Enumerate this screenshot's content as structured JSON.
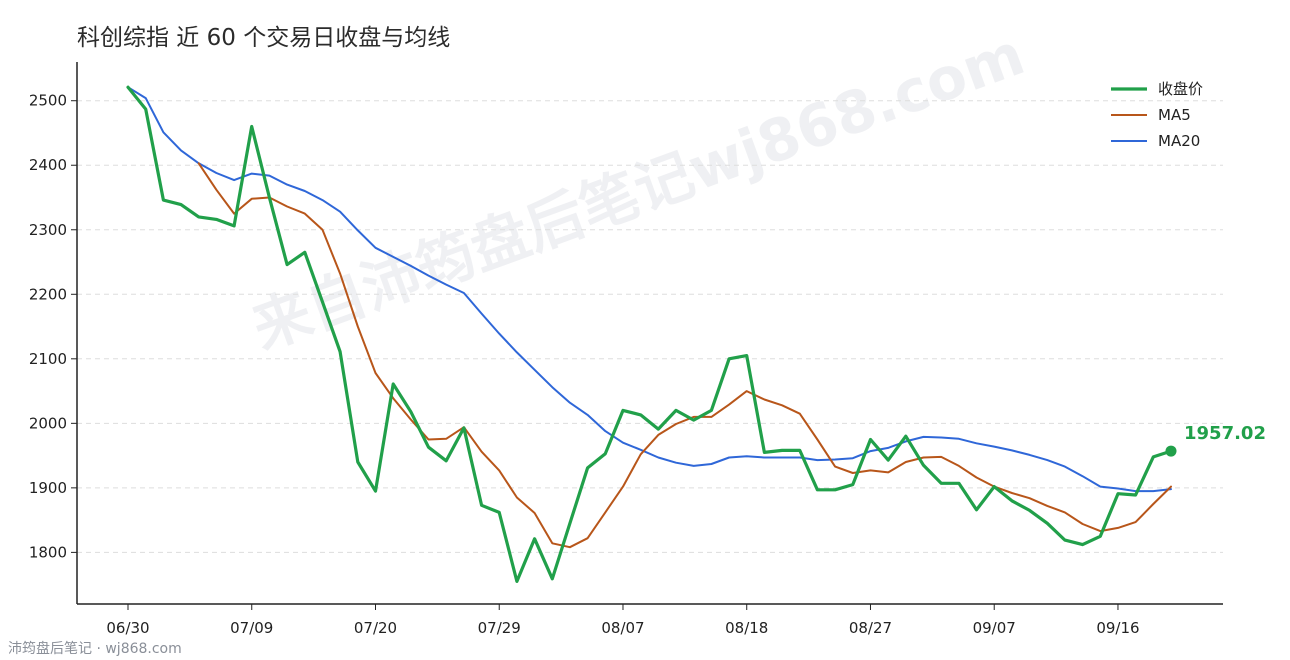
{
  "title": "科创综指 近 60 个交易日收盘与均线",
  "watermark": "来自沛筠盘后笔记wj868.com",
  "footer": "沛筠盘后笔记 · wj868.com",
  "colors": {
    "close": "#21a04a",
    "ma5": "#b8561a",
    "ma20": "#2f67d8",
    "grid": "#dddddd",
    "axis": "#222222"
  },
  "chart_data": {
    "type": "line",
    "title": "科创综指 近 60 个交易日收盘与均线",
    "xlabel": "",
    "ylabel": "",
    "ylim": [
      1720,
      2560
    ],
    "yticks": [
      1800,
      1900,
      2000,
      2100,
      2200,
      2300,
      2400,
      2500
    ],
    "x_tick_labels": [
      {
        "index": 0,
        "label": "06/30"
      },
      {
        "index": 7,
        "label": "07/09"
      },
      {
        "index": 14,
        "label": "07/20"
      },
      {
        "index": 21,
        "label": "07/29"
      },
      {
        "index": 28,
        "label": "08/07"
      },
      {
        "index": 35,
        "label": "08/18"
      },
      {
        "index": 42,
        "label": "08/27"
      },
      {
        "index": 49,
        "label": "09/07"
      },
      {
        "index": 56,
        "label": "09/16"
      }
    ],
    "grid": "horizontal dashed",
    "legend_position": "top-right",
    "last_value_label": "1957.02",
    "series": [
      {
        "name": "收盘价",
        "color": "#21a04a",
        "values": [
          2521,
          2487,
          2346,
          2339,
          2320,
          2316,
          2306,
          2460,
          2350,
          2246,
          2265,
          2188,
          2111,
          1940,
          1895,
          2061,
          2018,
          1963,
          1942,
          1993,
          1873,
          1862,
          1755,
          1821,
          1759,
          1845,
          1931,
          1953,
          2020,
          2013,
          1991,
          2020,
          2005,
          2020,
          2100,
          2105,
          1955,
          1958,
          1958,
          1897,
          1897,
          1905,
          1975,
          1943,
          1980,
          1935,
          1907,
          1907,
          1866,
          1902,
          1880,
          1865,
          1845,
          1819,
          1812,
          1825,
          1891,
          1889,
          1948,
          1957.02
        ]
      },
      {
        "name": "MA5",
        "color": "#b8561a",
        "values": [
          null,
          null,
          null,
          null,
          2403,
          2362,
          2325,
          2348,
          2350,
          2336,
          2325,
          2300,
          2232,
          2150,
          2078,
          2039,
          2006,
          1975,
          1976,
          1994,
          1956,
          1927,
          1885,
          1861,
          1814,
          1808,
          1822,
          1862,
          1902,
          1952,
          1982,
          1999,
          2010,
          2010,
          2029,
          2050,
          2037,
          2028,
          2015,
          1975,
          1933,
          1923,
          1927,
          1924,
          1940,
          1947,
          1948,
          1934,
          1916,
          1902,
          1892,
          1884,
          1872,
          1862,
          1844,
          1833,
          1838,
          1847,
          1875,
          1902
        ]
      },
      {
        "name": "MA20",
        "color": "#2f67d8",
        "values": [
          2521,
          2504,
          2451,
          2423,
          2403,
          2388,
          2377,
          2387,
          2384,
          2370,
          2360,
          2346,
          2328,
          2299,
          2272,
          2258,
          2244,
          2229,
          2215,
          2202,
          2170,
          2139,
          2110,
          2083,
          2056,
          2032,
          2013,
          1988,
          1970,
          1959,
          1947,
          1939,
          1934,
          1937,
          1947,
          1949,
          1947,
          1947,
          1947,
          1943,
          1944,
          1946,
          1957,
          1962,
          1972,
          1979,
          1978,
          1976,
          1969,
          1964,
          1958,
          1951,
          1943,
          1933,
          1918,
          1902,
          1899,
          1895,
          1895,
          1898
        ]
      }
    ]
  }
}
